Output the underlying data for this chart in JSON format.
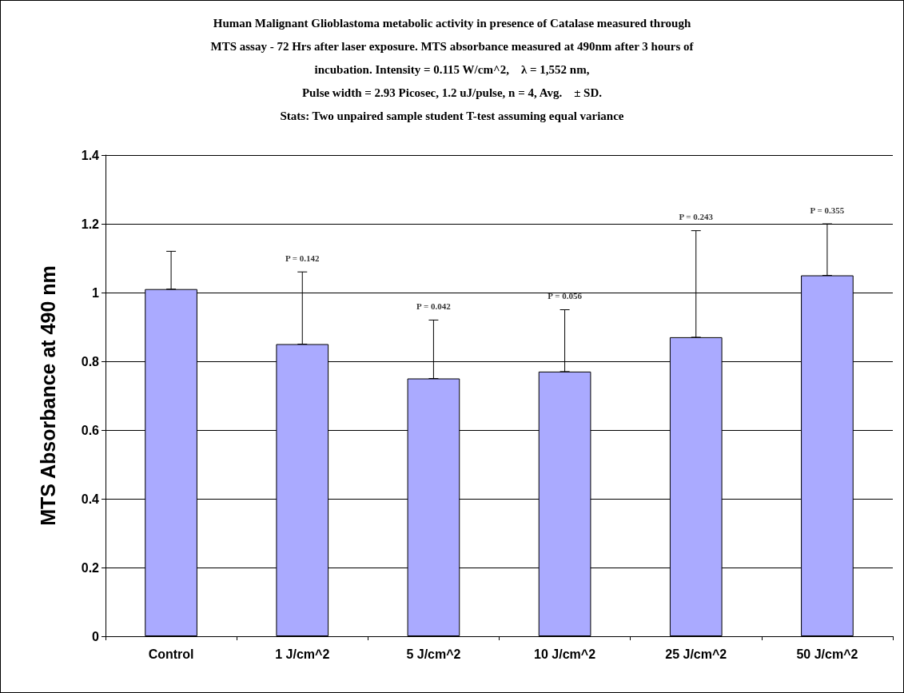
{
  "chart_data": {
    "type": "bar",
    "title": "Human Malignant Glioblastoma metabolic activity in presence of Catalase measured through\nMTS assay - 72 Hrs after laser exposure. MTS absorbance measured at 490nm after 3 hours of\nincubation. Intensity = 0.115 W/cm^2,    λ = 1,552 nm,\nPulse width = 2.93 Picosec, 1.2 uJ/pulse, n = 4, Avg.    ± SD.\nStats: Two unpaired sample student T-test assuming equal variance",
    "ylabel": "MTS Absorbance at 490 nm",
    "categories": [
      "Control",
      "1 J/cm^2",
      "5 J/cm^2",
      "10 J/cm^2",
      "25 J/cm^2",
      "50 J/cm^2"
    ],
    "values": [
      1.01,
      0.85,
      0.75,
      0.77,
      0.87,
      1.05
    ],
    "errors": [
      [
        1.01,
        1.12
      ],
      [
        0.85,
        1.06
      ],
      [
        0.75,
        0.92
      ],
      [
        0.77,
        0.95
      ],
      [
        0.87,
        1.18
      ],
      [
        1.05,
        1.2
      ]
    ],
    "color": "#aaaaff",
    "ylim": [
      0,
      1.4
    ],
    "yticks": [
      0,
      0.2,
      0.4,
      0.6,
      0.8,
      1,
      1.2,
      1.4
    ],
    "grid": "y",
    "annotations": [
      {
        "text": "P = 0.142",
        "x": "1 J/cm^2",
        "y": 1.06
      },
      {
        "text": "P = 0.042",
        "x": "5 J/cm^2",
        "y": 0.92
      },
      {
        "text": "P = 0.056",
        "x": "10 J/cm^2",
        "y": 0.95
      },
      {
        "text": "P = 0.243",
        "x": "25 J/cm^2",
        "y": 1.18
      },
      {
        "text": "P = 0.355",
        "x": "50 J/cm^2",
        "y": 1.2
      }
    ]
  }
}
